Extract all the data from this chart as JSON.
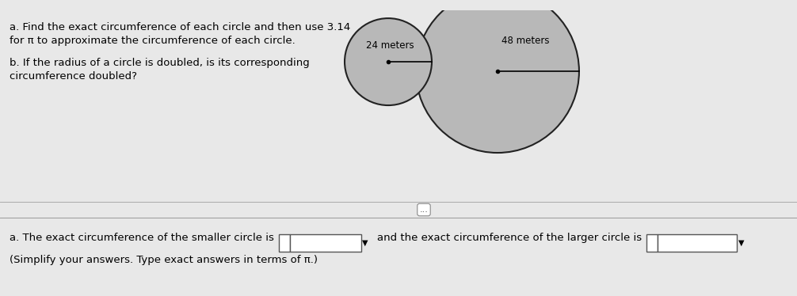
{
  "bg_color": "#e8e8e8",
  "top_bg_color": "#cce8f0",
  "white_panel_color": "#f0f0ee",
  "circle_fill": "#b8b8b8",
  "circle_edge": "#222222",
  "title_line1": "a. Find the exact circumference of each circle and then use 3.14",
  "title_line2": "for π to approximate the circumference of each circle.",
  "sub_line1": "b. If the radius of a circle is doubled, is its corresponding",
  "sub_line2": "circumference doubled?",
  "small_label": "24 meters",
  "large_label": "48 meters",
  "dots": "...",
  "ans_line1": "a. The exact circumference of the smaller circle is",
  "ans_line2": "and the exact circumference of the larger circle is",
  "ans_line3": "(Simplify your answers. Type exact answers in terms of π.)",
  "font_size": 9.5,
  "font_size_small": 8.5
}
